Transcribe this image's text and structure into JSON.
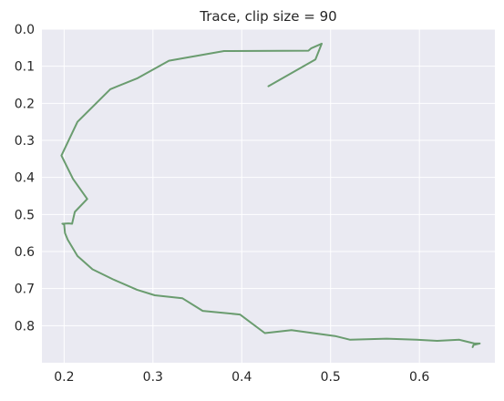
{
  "chart_data": {
    "type": "line",
    "title": "Trace, clip size = 90",
    "xlabel": "",
    "ylabel": "",
    "xlim": [
      0.175,
      0.685
    ],
    "ylim": [
      0.0,
      0.9
    ],
    "y_inverted": true,
    "grid": true,
    "x_ticks": [
      0.2,
      0.3,
      0.4,
      0.5,
      0.6
    ],
    "x_tick_labels": [
      "0.2",
      "0.3",
      "0.4",
      "0.5",
      "0.6"
    ],
    "y_ticks": [
      0.0,
      0.1,
      0.2,
      0.3,
      0.4,
      0.5,
      0.6,
      0.7,
      0.8
    ],
    "y_tick_labels": [
      "0.0",
      "0.1",
      "0.2",
      "0.3",
      "0.4",
      "0.5",
      "0.6",
      "0.7",
      "0.8"
    ],
    "series": [
      {
        "color": "#6a9c6f",
        "points": [
          [
            0.43,
            0.154
          ],
          [
            0.483,
            0.082
          ],
          [
            0.49,
            0.039
          ],
          [
            0.478,
            0.052
          ],
          [
            0.475,
            0.058
          ],
          [
            0.38,
            0.059
          ],
          [
            0.318,
            0.085
          ],
          [
            0.282,
            0.133
          ],
          [
            0.252,
            0.162
          ],
          [
            0.215,
            0.25
          ],
          [
            0.197,
            0.341
          ],
          [
            0.21,
            0.404
          ],
          [
            0.226,
            0.458
          ],
          [
            0.212,
            0.493
          ],
          [
            0.209,
            0.525
          ],
          [
            0.205,
            0.524
          ],
          [
            0.198,
            0.525
          ],
          [
            0.2,
            0.527
          ],
          [
            0.201,
            0.55
          ],
          [
            0.204,
            0.568
          ],
          [
            0.215,
            0.612
          ],
          [
            0.232,
            0.648
          ],
          [
            0.255,
            0.675
          ],
          [
            0.282,
            0.703
          ],
          [
            0.302,
            0.718
          ],
          [
            0.333,
            0.726
          ],
          [
            0.356,
            0.76
          ],
          [
            0.398,
            0.77
          ],
          [
            0.426,
            0.82
          ],
          [
            0.456,
            0.812
          ],
          [
            0.505,
            0.828
          ],
          [
            0.522,
            0.838
          ],
          [
            0.563,
            0.835
          ],
          [
            0.597,
            0.838
          ],
          [
            0.62,
            0.841
          ],
          [
            0.645,
            0.838
          ],
          [
            0.662,
            0.848
          ],
          [
            0.668,
            0.848
          ],
          [
            0.661,
            0.852
          ],
          [
            0.66,
            0.858
          ]
        ]
      }
    ]
  },
  "style": {
    "plot_background": "#eaeaf2",
    "grid_color": "#ffffff",
    "text_color": "#262626"
  }
}
